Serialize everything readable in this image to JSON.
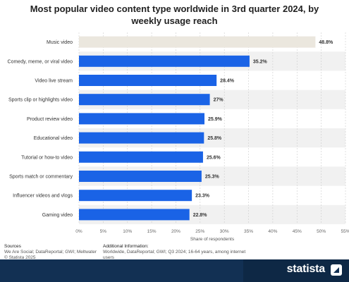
{
  "chart_data": {
    "type": "bar",
    "orientation": "horizontal",
    "title": "Most popular video content type worldwide in 3rd quarter 2024, by weekly usage reach",
    "categories": [
      "Music video",
      "Comedy, meme, or viral video",
      "Video live stream",
      "Sports clip or highlights video",
      "Product review video",
      "Educational video",
      "Tutorial or how-to video",
      "Sports match or commentary",
      "Influencer videos and vlogs",
      "Gaming video"
    ],
    "values": [
      48.8,
      35.2,
      28.4,
      27,
      25.9,
      25.8,
      25.6,
      25.3,
      23.3,
      22.8
    ],
    "value_labels": [
      "48.8%",
      "35.2%",
      "28.4%",
      "27%",
      "25.9%",
      "25.8%",
      "25.6%",
      "25.3%",
      "23.3%",
      "22.8%"
    ],
    "xlabel": "Share of respondents",
    "xlim": [
      0,
      55
    ],
    "xticks": [
      0,
      5,
      10,
      15,
      20,
      25,
      30,
      35,
      40,
      45,
      50,
      55
    ],
    "xtick_labels": [
      "0%",
      "5%",
      "10%",
      "15%",
      "20%",
      "25%",
      "30%",
      "35%",
      "40%",
      "45%",
      "50%",
      "55%"
    ],
    "colors": {
      "highlight": "#ebe7de",
      "bar": "#1a63e6",
      "band": "#f1f1f1",
      "grid": "#cccccc"
    },
    "highlight_index": 0,
    "grid": true,
    "legend": "none"
  },
  "footer": {
    "sources_heading": "Sources",
    "sources_lines": [
      "We Are Social; DataReportal; GWI; Meltwater",
      "© Statista 2025"
    ],
    "info_heading": "Additional Information:",
    "info_lines": [
      "Worldwide, DataReportal; GWI; Q3 2024; 16-64 years, among internet",
      "users"
    ]
  },
  "brand": {
    "logo": "statista"
  }
}
